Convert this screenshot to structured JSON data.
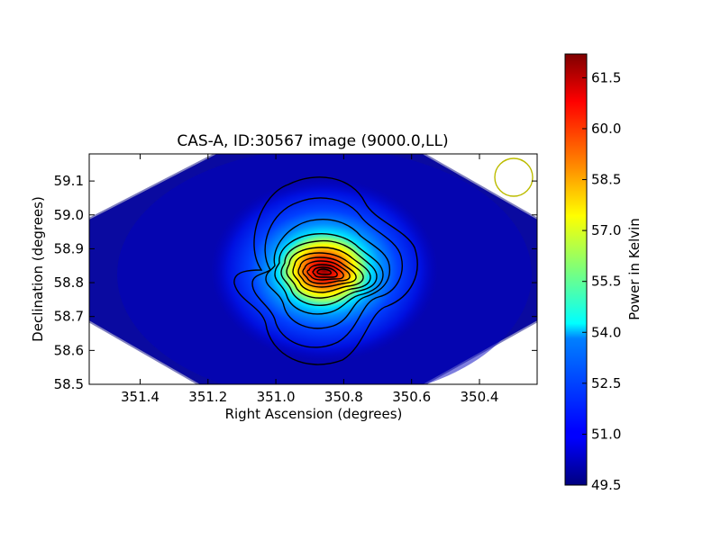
{
  "chart_data": {
    "type": "heatmap",
    "title": "CAS-A, ID:30567 image (9000.0,LL)",
    "xlabel": "Right Ascension (degrees)",
    "ylabel": "Declination (degrees)",
    "xlim": [
      351.55,
      350.23
    ],
    "ylim": [
      58.5,
      59.18
    ],
    "x_ticks": [
      "351.4",
      "351.2",
      "351.0",
      "350.8",
      "350.6",
      "350.4"
    ],
    "y_ticks": [
      "58.5",
      "58.6",
      "58.7",
      "58.8",
      "58.9",
      "59.0",
      "59.1"
    ],
    "colorbar": {
      "label": "Power in Kelvin",
      "range": [
        49.5,
        62.2
      ],
      "ticks": [
        "49.5",
        "51.0",
        "52.5",
        "54.0",
        "55.5",
        "57.0",
        "58.5",
        "60.0",
        "61.5"
      ],
      "colormap": "jet"
    },
    "peak": {
      "ra": 350.85,
      "dec": 58.83,
      "value": 62.2
    },
    "background_level": 49.5,
    "contour_count": 14,
    "beam_marker": {
      "ra": 350.27,
      "dec": 59.11,
      "color": "#bcbc00"
    }
  }
}
